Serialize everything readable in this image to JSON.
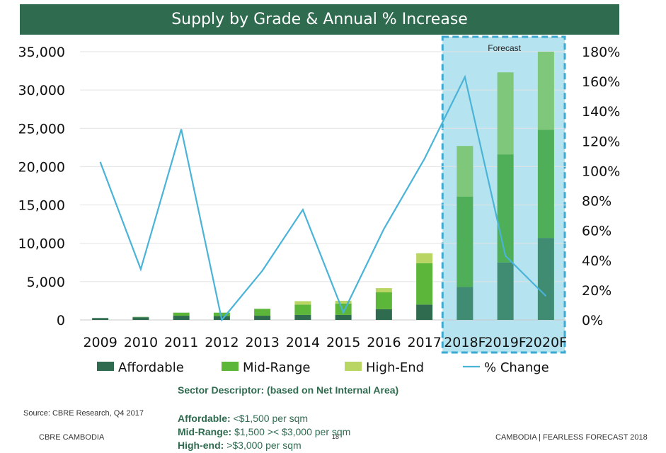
{
  "chart_data": {
    "type": "bar",
    "title": "Supply by Grade & Annual % Increase",
    "categories": [
      "2009",
      "2010",
      "2011",
      "2012",
      "2013",
      "2014",
      "2015",
      "2016",
      "2017",
      "2018F",
      "2019F",
      "2020F"
    ],
    "series": [
      {
        "name": "Affordable",
        "type": "bar",
        "stacked": true,
        "color": "#2e6b4f",
        "values": [
          250,
          350,
          550,
          500,
          550,
          650,
          650,
          1400,
          2000,
          4300,
          7500,
          10700
        ]
      },
      {
        "name": "Mid-Range",
        "type": "bar",
        "stacked": true,
        "color": "#5cb63a",
        "values": [
          0,
          50,
          400,
          450,
          900,
          1350,
          1500,
          2200,
          5400,
          11800,
          14100,
          14100
        ]
      },
      {
        "name": "High-End",
        "type": "bar",
        "stacked": true,
        "color": "#b9d664",
        "values": [
          0,
          0,
          0,
          0,
          0,
          450,
          350,
          550,
          1300,
          6600,
          10700,
          10200
        ]
      },
      {
        "name": "% Change",
        "type": "line",
        "axis": "right",
        "color": "#49b3d8",
        "values": [
          106,
          34,
          128,
          0,
          33,
          74,
          5,
          61,
          108,
          163,
          43,
          16
        ]
      }
    ],
    "y_left": {
      "min": 0,
      "max": 35000,
      "ticks": [
        "35,000",
        "30,000",
        "25,000",
        "20,000",
        "15,000",
        "10,000",
        "5,000",
        "0"
      ]
    },
    "y_right": {
      "min": 0,
      "max": 180,
      "ticks": [
        "180%",
        "160%",
        "140%",
        "120%",
        "100%",
        "80%",
        "60%",
        "40%",
        "20%",
        "0%"
      ]
    },
    "forecast_label": "Forecast",
    "forecast_start_category": "2018F",
    "forecast_fill": "#b5e4f0",
    "forecast_border": "#3da9d0",
    "forecast_bar_colors": {
      "Affordable": "#3f8c72",
      "Mid-Range": "#4fae58",
      "High-End": "#7fc77a"
    },
    "legend_position": "bottom",
    "grid": "horizontal"
  },
  "descriptor": {
    "heading": "Sector Descriptor: (based on Net Internal Area)",
    "affordable_label": "Affordable:",
    "affordable_value": "<$1,500 per sqm",
    "midrange_label": "Mid-Range:",
    "midrange_value": "$1,500 >< $3,000 per sqm",
    "highend_label": "High-end:",
    "highend_value": ">$3,000 per sqm"
  },
  "footer": {
    "source": "Source: CBRE Research, Q4 2017",
    "left": "CBRE CAMBODIA",
    "page": "18",
    "right": "CAMBODIA | FEARLESS FORECAST 2018"
  }
}
